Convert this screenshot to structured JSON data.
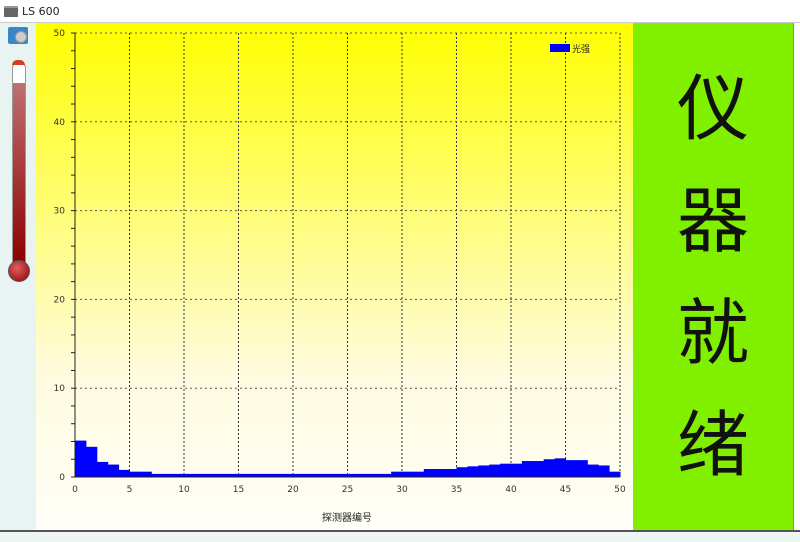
{
  "window": {
    "title": "LS 600",
    "icon": "app-window-icon"
  },
  "toolbar": {
    "icon": "settings-tool-icon"
  },
  "thermometer": {
    "level_percent": 90,
    "fill_color": "#8b0000"
  },
  "status": {
    "chars": [
      "仪",
      "器",
      "就",
      "绪"
    ],
    "background": "#80f000"
  },
  "chart_data": {
    "type": "bar",
    "xlabel": "探测器编号",
    "ylabel": "",
    "xlim": [
      0,
      50
    ],
    "ylim": [
      0,
      50
    ],
    "xticks": [
      0,
      5,
      10,
      15,
      20,
      25,
      30,
      35,
      40,
      45,
      50
    ],
    "yticks": [
      0,
      10,
      20,
      30,
      40,
      50
    ],
    "grid": true,
    "legend": "top-right",
    "series": [
      {
        "name": "光强",
        "color": "#0000ff",
        "x": [
          0,
          1,
          2,
          3,
          4,
          5,
          6,
          7,
          8,
          9,
          10,
          11,
          12,
          13,
          14,
          15,
          16,
          17,
          18,
          19,
          20,
          21,
          22,
          23,
          24,
          25,
          26,
          27,
          28,
          29,
          30,
          31,
          32,
          33,
          34,
          35,
          36,
          37,
          38,
          39,
          40,
          41,
          42,
          43,
          44,
          45,
          46,
          47,
          48,
          49
        ],
        "values": [
          4.1,
          3.4,
          1.7,
          1.4,
          0.8,
          0.6,
          0.6,
          0.35,
          0.35,
          0.35,
          0.35,
          0.35,
          0.35,
          0.35,
          0.35,
          0.35,
          0.35,
          0.35,
          0.35,
          0.35,
          0.35,
          0.35,
          0.35,
          0.35,
          0.35,
          0.35,
          0.35,
          0.35,
          0.35,
          0.6,
          0.6,
          0.6,
          0.9,
          0.9,
          0.9,
          1.1,
          1.2,
          1.3,
          1.4,
          1.5,
          1.5,
          1.8,
          1.8,
          2.0,
          2.1,
          1.9,
          1.9,
          1.4,
          1.3,
          0.6
        ]
      }
    ]
  }
}
